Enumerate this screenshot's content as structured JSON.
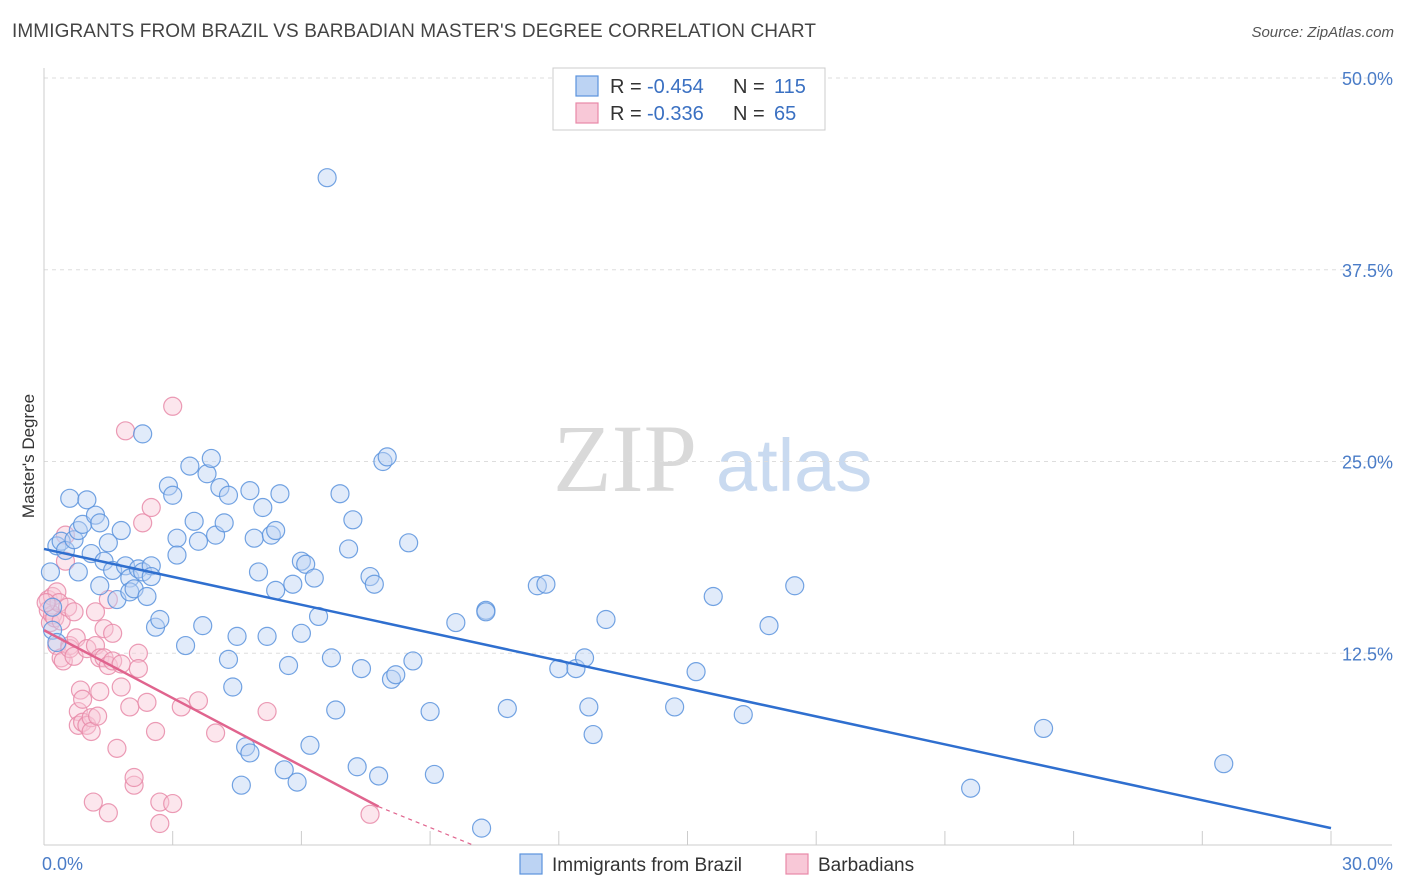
{
  "title": "IMMIGRANTS FROM BRAZIL VS BARBADIAN MASTER'S DEGREE CORRELATION CHART",
  "source": "Source: ZipAtlas.com",
  "watermark": {
    "zip": "ZIP",
    "atlas": "atlas"
  },
  "colors": {
    "blue": "#5b93dd",
    "blue_line": "#2f6fcf",
    "blue_fill": "#bcd3f3",
    "pink": "#e889a8",
    "pink_line": "#e0648e",
    "pink_fill": "#f8c8d7",
    "grid": "#dddddd",
    "axis_label": "#4a7cc7"
  },
  "legend": {
    "rows": [
      {
        "r_label": "R =",
        "r_value": "-0.454",
        "n_label": "N =",
        "n_value": "115"
      },
      {
        "r_label": "R =",
        "r_value": "-0.336",
        "n_label": "N =",
        "n_value": "65"
      }
    ]
  },
  "chart_data": {
    "type": "scatter",
    "title": "IMMIGRANTS FROM BRAZIL VS BARBADIAN MASTER'S DEGREE CORRELATION CHART",
    "xlabel": "",
    "ylabel": "Master's Degree",
    "xlim": [
      0,
      30
    ],
    "ylim": [
      0,
      50
    ],
    "x_tick_labels": [
      "0.0%",
      "30.0%"
    ],
    "y_ticks": [
      12.5,
      25.0,
      37.5,
      50.0
    ],
    "y_tick_labels": [
      "12.5%",
      "25.0%",
      "37.5%",
      "50.0%"
    ],
    "grid": true,
    "legend_position": "top-center",
    "series": [
      {
        "name": "Immigrants from Brazil",
        "color": "#5b93dd",
        "R": -0.454,
        "N": 115,
        "trend": {
          "x": [
            0,
            30
          ],
          "y": [
            19.3,
            1.1
          ]
        },
        "points": [
          [
            0.3,
            19.5
          ],
          [
            0.4,
            19.8
          ],
          [
            0.5,
            19.2
          ],
          [
            0.6,
            22.6
          ],
          [
            0.7,
            19.9
          ],
          [
            0.8,
            20.5
          ],
          [
            0.9,
            20.9
          ],
          [
            1.0,
            22.5
          ],
          [
            1.1,
            19.0
          ],
          [
            1.2,
            21.5
          ],
          [
            1.3,
            21.0
          ],
          [
            0.8,
            17.8
          ],
          [
            1.3,
            16.9
          ],
          [
            1.4,
            18.5
          ],
          [
            1.5,
            19.7
          ],
          [
            1.6,
            17.9
          ],
          [
            1.7,
            16.0
          ],
          [
            1.8,
            20.5
          ],
          [
            1.9,
            18.2
          ],
          [
            2.0,
            17.4
          ],
          [
            2.0,
            16.5
          ],
          [
            2.1,
            16.7
          ],
          [
            2.2,
            18.0
          ],
          [
            2.3,
            17.8
          ],
          [
            2.4,
            16.2
          ],
          [
            2.5,
            18.2
          ],
          [
            2.5,
            17.5
          ],
          [
            2.6,
            14.2
          ],
          [
            2.7,
            14.7
          ],
          [
            2.3,
            26.8
          ],
          [
            2.9,
            23.4
          ],
          [
            3.0,
            22.8
          ],
          [
            3.1,
            20.0
          ],
          [
            3.1,
            18.9
          ],
          [
            3.3,
            13.0
          ],
          [
            3.4,
            24.7
          ],
          [
            3.5,
            21.1
          ],
          [
            3.6,
            19.8
          ],
          [
            3.7,
            14.3
          ],
          [
            3.8,
            24.2
          ],
          [
            3.9,
            25.2
          ],
          [
            4.0,
            20.2
          ],
          [
            4.1,
            23.3
          ],
          [
            4.2,
            21.0
          ],
          [
            4.3,
            12.1
          ],
          [
            4.3,
            22.8
          ],
          [
            4.4,
            10.3
          ],
          [
            4.5,
            13.6
          ],
          [
            4.6,
            3.9
          ],
          [
            4.7,
            6.4
          ],
          [
            4.8,
            23.1
          ],
          [
            4.8,
            6.0
          ],
          [
            4.9,
            20.0
          ],
          [
            5.0,
            17.8
          ],
          [
            5.1,
            22.0
          ],
          [
            5.2,
            13.6
          ],
          [
            5.3,
            20.2
          ],
          [
            5.4,
            20.5
          ],
          [
            5.4,
            16.6
          ],
          [
            5.5,
            22.9
          ],
          [
            5.6,
            4.9
          ],
          [
            5.7,
            11.7
          ],
          [
            5.8,
            17.0
          ],
          [
            5.9,
            4.1
          ],
          [
            6.0,
            13.8
          ],
          [
            6.0,
            18.5
          ],
          [
            6.1,
            18.3
          ],
          [
            6.2,
            6.5
          ],
          [
            6.3,
            17.4
          ],
          [
            6.4,
            14.9
          ],
          [
            6.6,
            43.5
          ],
          [
            6.7,
            12.2
          ],
          [
            6.8,
            8.8
          ],
          [
            6.9,
            22.9
          ],
          [
            7.1,
            19.3
          ],
          [
            7.2,
            21.2
          ],
          [
            7.3,
            5.1
          ],
          [
            7.4,
            11.5
          ],
          [
            7.6,
            17.5
          ],
          [
            7.7,
            17.0
          ],
          [
            7.8,
            4.5
          ],
          [
            7.9,
            25.0
          ],
          [
            8.0,
            25.3
          ],
          [
            8.1,
            10.8
          ],
          [
            8.2,
            11.1
          ],
          [
            8.5,
            19.7
          ],
          [
            8.6,
            12.0
          ],
          [
            9.0,
            8.7
          ],
          [
            9.1,
            4.6
          ],
          [
            9.6,
            14.5
          ],
          [
            10.2,
            1.1
          ],
          [
            10.3,
            15.3
          ],
          [
            10.3,
            15.2
          ],
          [
            10.8,
            8.9
          ],
          [
            11.5,
            16.9
          ],
          [
            11.7,
            17.0
          ],
          [
            12.0,
            11.5
          ],
          [
            12.4,
            11.5
          ],
          [
            12.6,
            12.2
          ],
          [
            12.7,
            9.0
          ],
          [
            12.8,
            7.2
          ],
          [
            13.1,
            14.7
          ],
          [
            14.7,
            9.0
          ],
          [
            15.2,
            11.3
          ],
          [
            15.6,
            16.2
          ],
          [
            16.3,
            8.5
          ],
          [
            16.9,
            14.3
          ],
          [
            17.5,
            16.9
          ],
          [
            21.6,
            3.7
          ],
          [
            23.3,
            7.6
          ],
          [
            27.5,
            5.3
          ],
          [
            0.2,
            14.0
          ],
          [
            0.3,
            13.2
          ],
          [
            0.2,
            15.5
          ],
          [
            0.15,
            17.8
          ]
        ]
      },
      {
        "name": "Barbadians",
        "color": "#e889a8",
        "R": -0.336,
        "N": 65,
        "trend": {
          "x": [
            0,
            7.8
          ],
          "y": [
            14.0,
            2.5
          ]
        },
        "trend_dashed": {
          "x": [
            7.8,
            10.0
          ],
          "y": [
            2.5,
            -0.7
          ]
        },
        "points": [
          [
            0.1,
            16.0
          ],
          [
            0.1,
            15.3
          ],
          [
            0.15,
            14.5
          ],
          [
            0.2,
            16.2
          ],
          [
            0.2,
            15.0
          ],
          [
            0.25,
            14.8
          ],
          [
            0.3,
            16.5
          ],
          [
            0.3,
            13.0
          ],
          [
            0.35,
            15.8
          ],
          [
            0.4,
            14.6
          ],
          [
            0.4,
            12.2
          ],
          [
            0.45,
            12.0
          ],
          [
            0.5,
            20.2
          ],
          [
            0.5,
            18.5
          ],
          [
            0.55,
            15.5
          ],
          [
            0.6,
            13.0
          ],
          [
            0.6,
            12.8
          ],
          [
            0.7,
            15.2
          ],
          [
            0.7,
            12.3
          ],
          [
            0.75,
            13.5
          ],
          [
            0.8,
            8.7
          ],
          [
            0.8,
            7.8
          ],
          [
            0.85,
            10.1
          ],
          [
            0.9,
            8.0
          ],
          [
            0.9,
            9.5
          ],
          [
            1.0,
            12.8
          ],
          [
            1.0,
            7.8
          ],
          [
            1.1,
            8.3
          ],
          [
            1.1,
            7.4
          ],
          [
            1.15,
            2.8
          ],
          [
            1.2,
            15.2
          ],
          [
            1.2,
            13.0
          ],
          [
            1.25,
            8.4
          ],
          [
            1.3,
            12.2
          ],
          [
            1.3,
            10.0
          ],
          [
            1.4,
            14.1
          ],
          [
            1.4,
            12.2
          ],
          [
            1.5,
            16.0
          ],
          [
            1.5,
            11.7
          ],
          [
            1.5,
            2.1
          ],
          [
            1.6,
            13.8
          ],
          [
            1.6,
            12.0
          ],
          [
            1.7,
            6.3
          ],
          [
            1.8,
            11.8
          ],
          [
            1.8,
            10.3
          ],
          [
            1.9,
            27.0
          ],
          [
            2.0,
            9.0
          ],
          [
            2.1,
            3.9
          ],
          [
            2.1,
            4.4
          ],
          [
            2.2,
            12.5
          ],
          [
            2.2,
            11.5
          ],
          [
            2.3,
            21.0
          ],
          [
            2.4,
            9.3
          ],
          [
            2.5,
            22.0
          ],
          [
            2.6,
            7.4
          ],
          [
            2.7,
            1.4
          ],
          [
            2.7,
            2.8
          ],
          [
            3.0,
            2.7
          ],
          [
            3.0,
            28.6
          ],
          [
            3.2,
            9.0
          ],
          [
            3.6,
            9.4
          ],
          [
            4.0,
            7.3
          ],
          [
            5.2,
            8.7
          ],
          [
            7.6,
            2.0
          ],
          [
            0.05,
            15.8
          ]
        ]
      }
    ]
  }
}
